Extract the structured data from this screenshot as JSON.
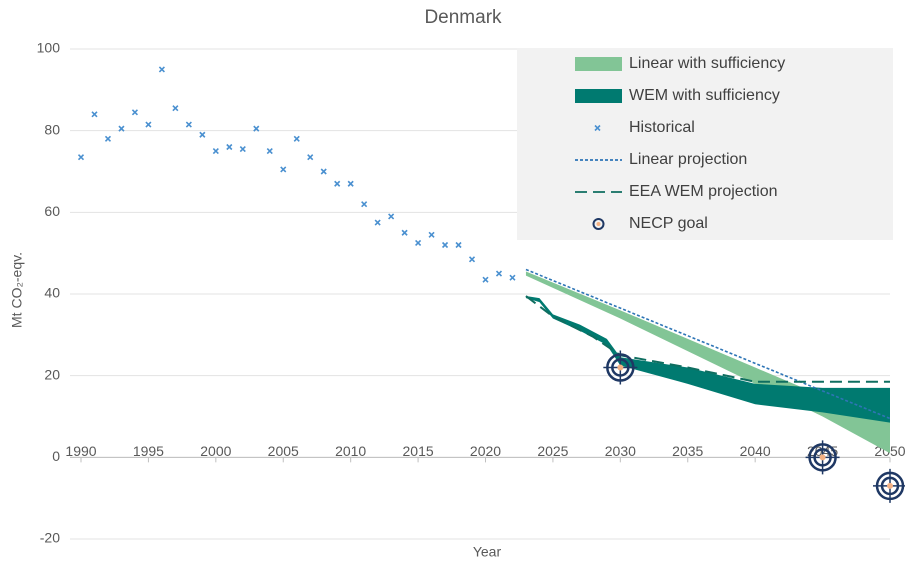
{
  "chart_data": {
    "type": "mixed",
    "title": "Denmark",
    "x_label": "Year",
    "y_label": "Mt CO₂-eqv.",
    "xlim": [
      1990,
      2050
    ],
    "xticks": [
      1990,
      1995,
      2000,
      2005,
      2010,
      2015,
      2020,
      2025,
      2030,
      2035,
      2040,
      2045,
      2050
    ],
    "ylim": [
      -20,
      100
    ],
    "yticks": [
      -20,
      0,
      20,
      40,
      60,
      80,
      100
    ],
    "grid": true,
    "legend": "upper right",
    "series": [
      {
        "name": "Linear with sufficiency",
        "type": "band",
        "color": "#82c596",
        "x": [
          2023,
          2030,
          2040,
          2045,
          2050
        ],
        "upper": [
          45.5,
          36,
          22,
          15,
          9
        ],
        "lower": [
          44.5,
          34,
          18,
          10,
          1
        ]
      },
      {
        "name": "WEM with sufficiency",
        "type": "band",
        "color": "#007a70",
        "x": [
          2023,
          2024,
          2025,
          2027,
          2029,
          2030,
          2035,
          2040,
          2045,
          2050
        ],
        "upper": [
          39.5,
          39,
          35,
          32.5,
          29,
          24.5,
          22,
          18,
          17,
          17
        ],
        "lower": [
          39,
          38,
          34,
          31,
          27.5,
          22.5,
          18,
          13,
          11,
          8.5
        ]
      },
      {
        "name": "Historical",
        "type": "scatter",
        "color": "#4a90d0",
        "x": [
          1990,
          1991,
          1992,
          1993,
          1994,
          1995,
          1996,
          1997,
          1998,
          1999,
          2000,
          2001,
          2002,
          2003,
          2004,
          2005,
          2006,
          2007,
          2008,
          2009,
          2010,
          2011,
          2012,
          2013,
          2014,
          2015,
          2016,
          2017,
          2018,
          2019,
          2020,
          2021,
          2022
        ],
        "values": [
          73.5,
          84,
          78,
          80.5,
          84.5,
          81.5,
          95,
          85.5,
          81.5,
          79,
          75,
          76,
          75.5,
          80.5,
          75,
          70.5,
          78,
          73.5,
          70,
          67,
          67,
          62,
          57.5,
          59,
          55,
          52.5,
          54.5,
          52,
          52,
          48.5,
          43.5,
          45,
          44
        ]
      },
      {
        "name": "Linear projection",
        "type": "line",
        "dash": "dotted",
        "color": "#2e75b6",
        "x": [
          2023,
          2050
        ],
        "values": [
          46,
          9.5
        ]
      },
      {
        "name": "EEA WEM projection",
        "type": "line",
        "dash": "dashed",
        "color": "#0f6e60",
        "x": [
          2023,
          2025,
          2028,
          2030,
          2035,
          2040,
          2045,
          2050
        ],
        "values": [
          39.5,
          34.5,
          29.5,
          25,
          22,
          18.5,
          18.5,
          18.5
        ]
      },
      {
        "name": "NECP goal",
        "type": "goal",
        "color": "#1f3864",
        "x": [
          2030,
          2045,
          2050
        ],
        "values": [
          22,
          0,
          -7
        ]
      }
    ]
  }
}
